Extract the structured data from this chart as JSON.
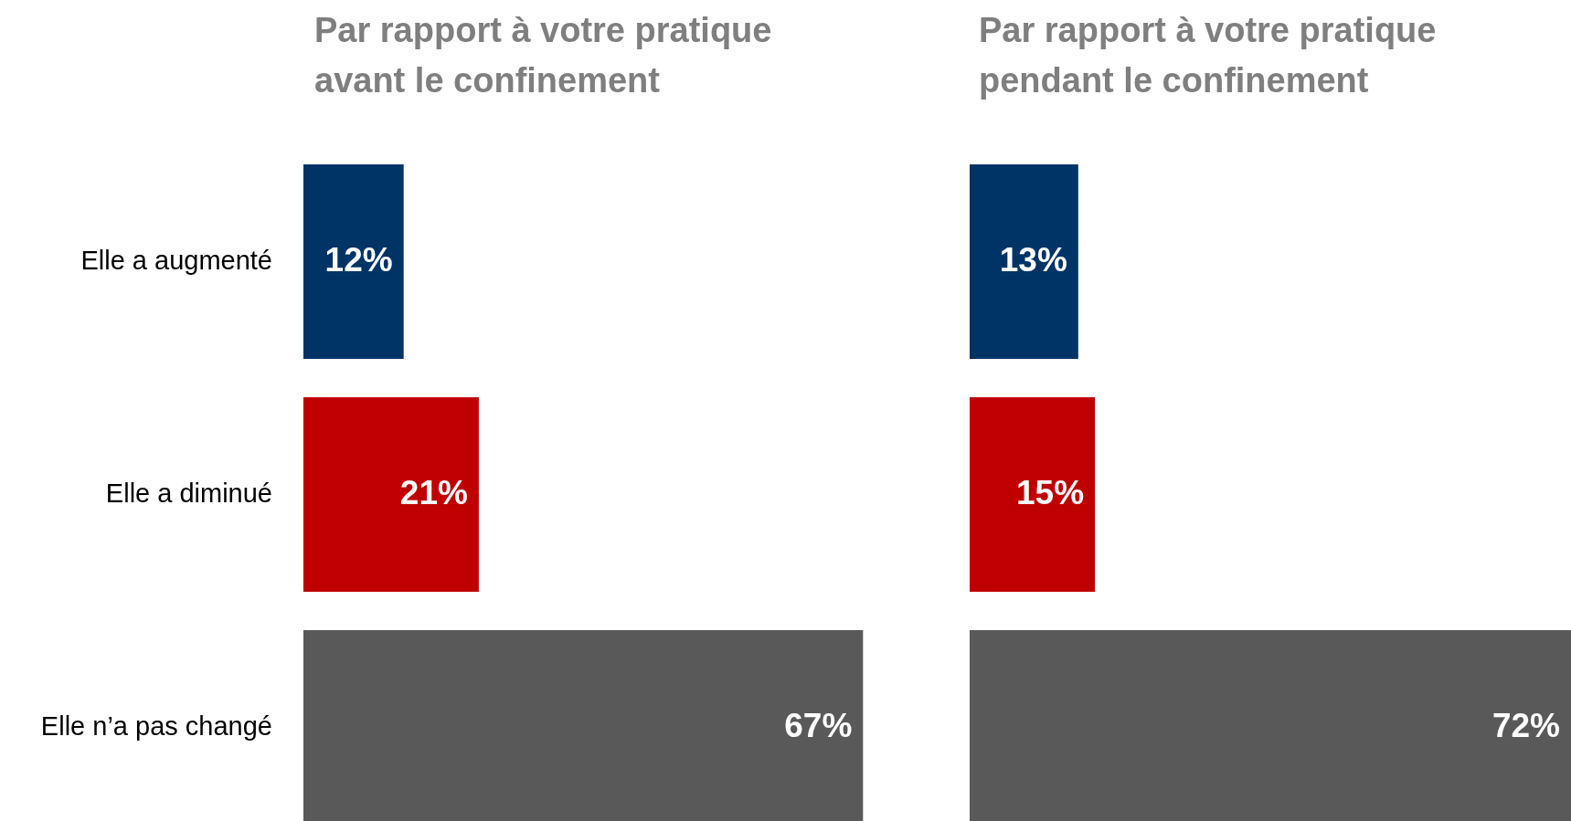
{
  "chart_data": [
    {
      "type": "bar",
      "orientation": "horizontal",
      "title": "Par rapport à votre pratique avant le confinement",
      "categories": [
        "Elle a augmenté",
        "Elle a diminué",
        "Elle n’a pas changé"
      ],
      "values": [
        12,
        21,
        67
      ],
      "colors": [
        "#003366",
        "#c00000",
        "#595959"
      ],
      "value_labels": [
        "12%",
        "21%",
        "67%"
      ],
      "tick_labels": "y",
      "legend": false
    },
    {
      "type": "bar",
      "orientation": "horizontal",
      "title": "Par rapport à votre pratique pendant le confinement",
      "categories": [
        null,
        null,
        null
      ],
      "values": [
        13,
        15,
        72
      ],
      "colors": [
        "#003366",
        "#c00000",
        "#595959"
      ],
      "value_labels": [
        "13%",
        "15%",
        "72%"
      ],
      "tick_labels": false,
      "legend": false
    }
  ]
}
